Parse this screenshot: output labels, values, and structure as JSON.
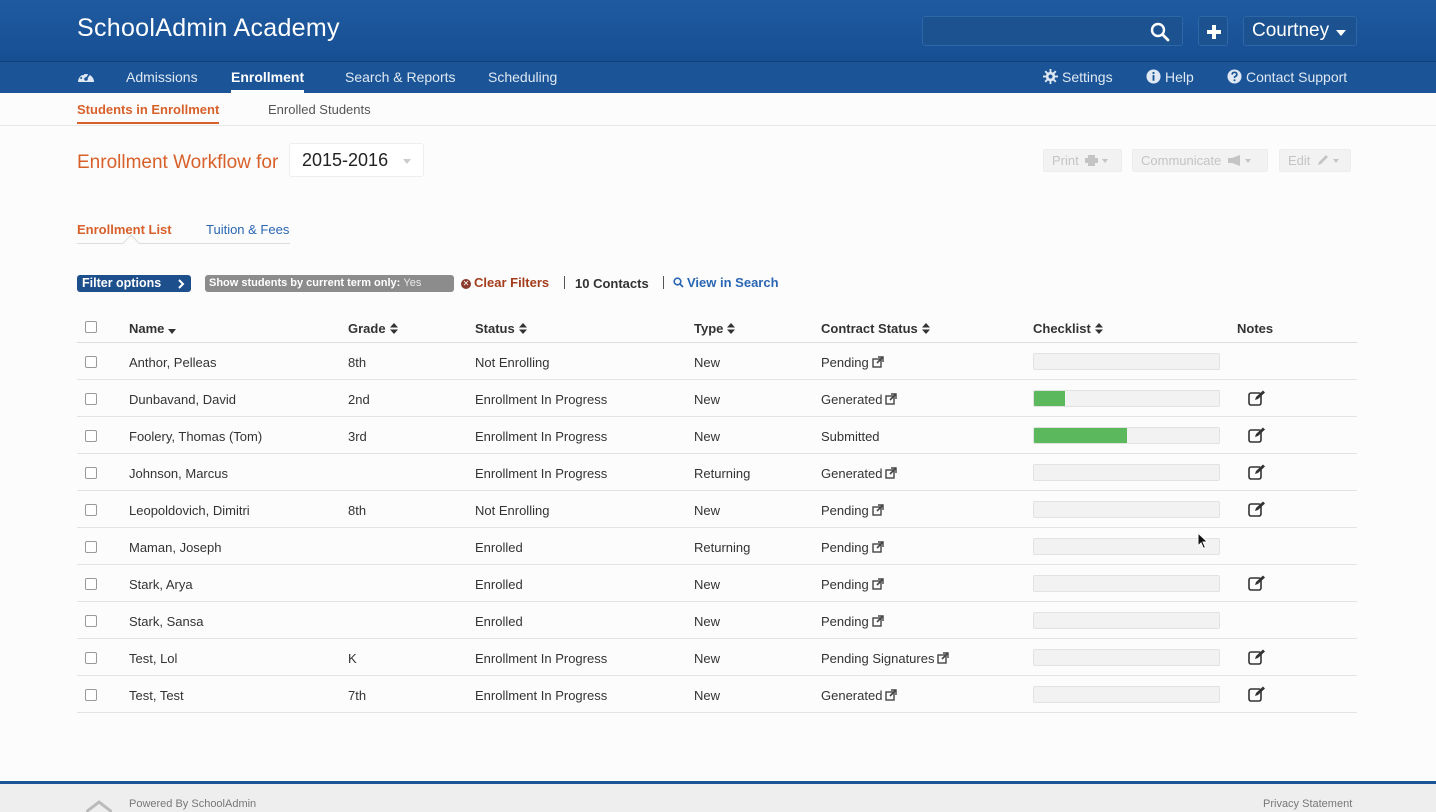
{
  "app": {
    "title": "SchoolAdmin Academy"
  },
  "header": {
    "search_placeholder": "",
    "user_name": "Courtney"
  },
  "nav": {
    "items": [
      {
        "label": "Admissions"
      },
      {
        "label": "Enrollment"
      },
      {
        "label": "Search & Reports"
      },
      {
        "label": "Scheduling"
      }
    ],
    "right": [
      {
        "label": "Settings",
        "icon": "gear-icon"
      },
      {
        "label": "Help",
        "icon": "info-icon"
      },
      {
        "label": "Contact Support",
        "icon": "question-icon"
      }
    ]
  },
  "subtabs": [
    "Students in Enrollment",
    "Enrolled Students"
  ],
  "workflow": {
    "title": "Enrollment Workflow for",
    "year": "2015-2016"
  },
  "actions": {
    "print": "Print",
    "communicate": "Communicate",
    "edit": "Edit"
  },
  "inner_tabs": [
    "Enrollment List",
    "Tuition & Fees"
  ],
  "filters": {
    "filter_options": "Filter options",
    "term_badge_label": "Show students by current term only:",
    "term_badge_value": "Yes",
    "clear_filters": "Clear Filters",
    "contacts": "10 Contacts",
    "view_in_search": "View in Search"
  },
  "table": {
    "columns": [
      "Name",
      "Grade",
      "Status",
      "Type",
      "Contract Status",
      "Checklist",
      "Notes"
    ],
    "rows": [
      {
        "name": "Anthor, Pelleas",
        "grade": "8th",
        "status": "Not Enrolling",
        "type": "New",
        "contract": "Pending",
        "contract_link": true,
        "checklist": 0,
        "notes": false
      },
      {
        "name": "Dunbavand, David",
        "grade": "2nd",
        "status": "Enrollment In Progress",
        "type": "New",
        "contract": "Generated",
        "contract_link": true,
        "checklist": 0.17,
        "notes": true
      },
      {
        "name": "Foolery, Thomas (Tom)",
        "grade": "3rd",
        "status": "Enrollment In Progress",
        "type": "New",
        "contract": "Submitted",
        "contract_link": false,
        "checklist": 0.5,
        "notes": true
      },
      {
        "name": "Johnson, Marcus",
        "grade": "",
        "status": "Enrollment In Progress",
        "type": "Returning",
        "contract": "Generated",
        "contract_link": true,
        "checklist": 0,
        "notes": true
      },
      {
        "name": "Leopoldovich, Dimitri",
        "grade": "8th",
        "status": "Not Enrolling",
        "type": "New",
        "contract": "Pending",
        "contract_link": true,
        "checklist": 0,
        "notes": true
      },
      {
        "name": "Maman, Joseph",
        "grade": "",
        "status": "Enrolled",
        "type": "Returning",
        "contract": "Pending",
        "contract_link": true,
        "checklist": 0,
        "notes": false
      },
      {
        "name": "Stark, Arya",
        "grade": "",
        "status": "Enrolled",
        "type": "New",
        "contract": "Pending",
        "contract_link": true,
        "checklist": 0,
        "notes": true
      },
      {
        "name": "Stark, Sansa",
        "grade": "",
        "status": "Enrolled",
        "type": "New",
        "contract": "Pending",
        "contract_link": true,
        "checklist": 0,
        "notes": false
      },
      {
        "name": "Test, Lol",
        "grade": "K",
        "status": "Enrollment In Progress",
        "type": "New",
        "contract": "Pending Signatures",
        "contract_link": true,
        "checklist": 0,
        "notes": true
      },
      {
        "name": "Test, Test",
        "grade": "7th",
        "status": "Enrollment In Progress",
        "type": "New",
        "contract": "Generated",
        "contract_link": true,
        "checklist": 0,
        "notes": true
      }
    ]
  },
  "footer": {
    "powered_by": "Powered By SchoolAdmin",
    "privacy": "Privacy Statement"
  },
  "colors": {
    "brand": "#1b5597",
    "accent": "#d8602a",
    "link": "#2a66b3",
    "progress": "#5cb85c"
  }
}
